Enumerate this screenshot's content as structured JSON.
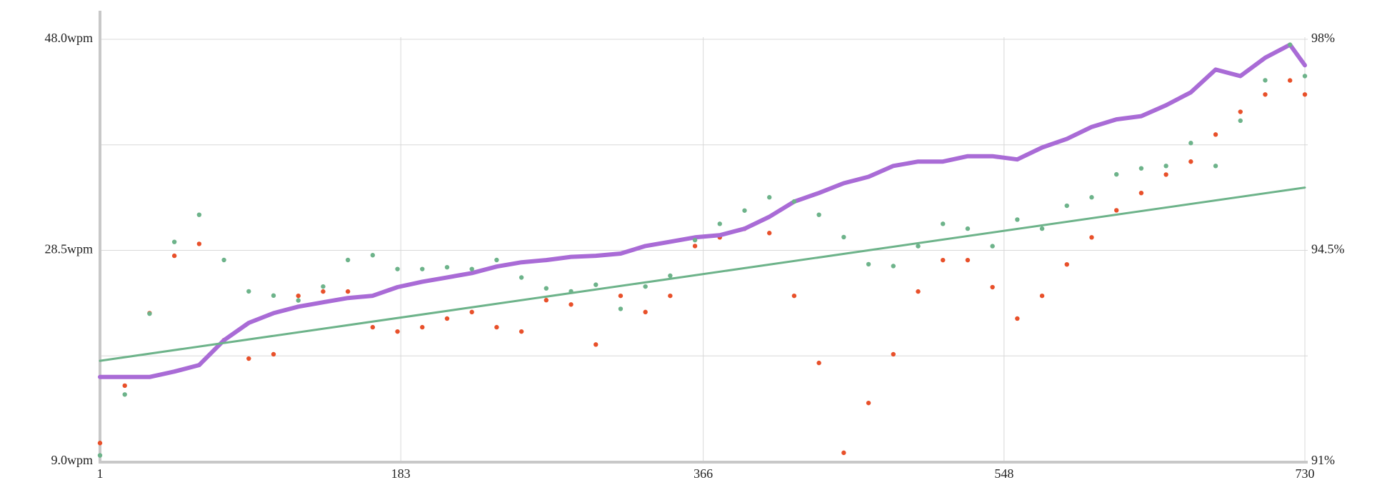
{
  "chart_data": {
    "type": "line",
    "x": [
      1,
      16,
      31,
      46,
      61,
      76,
      91,
      106,
      121,
      136,
      151,
      166,
      181,
      196,
      211,
      226,
      241,
      256,
      271,
      286,
      301,
      316,
      331,
      346,
      361,
      376,
      391,
      406,
      421,
      436,
      451,
      466,
      481,
      496,
      511,
      526,
      541,
      556,
      571,
      586,
      601,
      616,
      631,
      646,
      661,
      676,
      691,
      706,
      721,
      730
    ],
    "xlim": [
      1,
      730
    ],
    "xticks": [
      1,
      183,
      366,
      548,
      730
    ],
    "ylim": [
      9,
      48
    ],
    "yticks": [
      {
        "value": 9,
        "label": "9.0wpm"
      },
      {
        "value": 28.5,
        "label": "28.5wpm"
      },
      {
        "value": 48,
        "label": "48.0wpm"
      }
    ],
    "ygrid": [
      18.75,
      38.25
    ],
    "y2lim": [
      91,
      98
    ],
    "y2ticks": [
      {
        "value": 91,
        "label": "91%"
      },
      {
        "value": 94.5,
        "label": "94.5%"
      },
      {
        "value": 98,
        "label": "98%"
      }
    ],
    "grid": true,
    "series": [
      {
        "color": "#e8502a",
        "style": "dots",
        "values": [
          10.7,
          16.0,
          22.7,
          28.0,
          29.1,
          20.2,
          18.5,
          18.9,
          24.3,
          24.7,
          24.7,
          21.4,
          21.0,
          21.4,
          22.2,
          22.8,
          21.4,
          21.0,
          23.9,
          23.5,
          19.8,
          24.3,
          22.8,
          24.3,
          28.9,
          29.7,
          30.5,
          30.1,
          24.3,
          18.1,
          9.8,
          14.4,
          18.9,
          24.7,
          27.6,
          27.6,
          25.1,
          22.2,
          24.3,
          27.2,
          29.7,
          32.2,
          33.8,
          35.5,
          36.7,
          39.2,
          41.3,
          42.9,
          44.2,
          42.9
        ]
      },
      {
        "color": "#a96bd6",
        "style": "line",
        "values": [
          16.8,
          16.8,
          16.8,
          17.3,
          17.9,
          20.2,
          21.8,
          22.7,
          23.3,
          23.7,
          24.1,
          24.3,
          25.1,
          25.6,
          26.0,
          26.4,
          27.0,
          27.4,
          27.6,
          27.9,
          28.0,
          28.2,
          28.9,
          29.3,
          29.7,
          29.9,
          30.5,
          31.6,
          33.0,
          33.8,
          34.7,
          35.3,
          36.3,
          36.7,
          36.7,
          37.2,
          37.2,
          36.9,
          38.0,
          38.8,
          39.9,
          40.6,
          40.9,
          41.9,
          43.1,
          45.2,
          44.6,
          46.3,
          47.5,
          45.6
        ]
      },
      {
        "color": "#6db38a",
        "style": "dots",
        "axis": "y2",
        "values": [
          91.1,
          92.11,
          93.45,
          94.64,
          95.09,
          94.34,
          93.82,
          93.75,
          93.67,
          93.9,
          94.34,
          94.42,
          94.19,
          94.19,
          94.22,
          94.19,
          94.34,
          94.05,
          93.87,
          93.82,
          93.93,
          93.53,
          93.9,
          94.08,
          94.67,
          94.94,
          95.16,
          95.38,
          95.31,
          95.09,
          94.72,
          94.27,
          94.24,
          94.57,
          94.94,
          94.86,
          94.57,
          95.01,
          94.86,
          95.24,
          95.38,
          95.76,
          95.86,
          95.9,
          96.28,
          95.9,
          96.65,
          97.32,
          97.91,
          97.39
        ]
      },
      {
        "color": "#6db38a",
        "style": "thin",
        "x": [
          1,
          730
        ],
        "values": [
          18.3,
          34.3
        ]
      }
    ]
  }
}
